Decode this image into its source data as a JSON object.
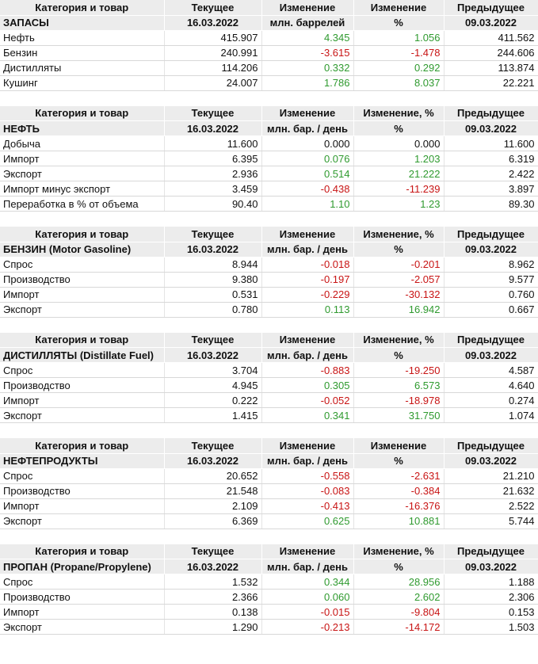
{
  "tables": [
    {
      "header": [
        "Категория и товар",
        "Текущее",
        "Изменение",
        "Изменение",
        "Предыдущее"
      ],
      "subheader": [
        "ЗАПАСЫ",
        "16.03.2022",
        "млн. баррелей",
        "%",
        "09.03.2022"
      ],
      "rows": [
        [
          "Нефть",
          "415.907",
          "4.345",
          "1.056",
          "411.562"
        ],
        [
          "Бензин",
          "240.991",
          "-3.615",
          "-1.478",
          "244.606"
        ],
        [
          "Дистилляты",
          "114.206",
          "0.332",
          "0.292",
          "113.874"
        ],
        [
          "Кушинг",
          "24.007",
          "1.786",
          "8.037",
          "22.221"
        ]
      ]
    },
    {
      "header": [
        "Категория и товар",
        "Текущее",
        "Изменение",
        "Изменение, %",
        "Предыдущее"
      ],
      "subheader": [
        "НЕФТЬ",
        "16.03.2022",
        "млн. бар. / день",
        "%",
        "09.03.2022"
      ],
      "rows": [
        [
          "Добыча",
          "11.600",
          "0.000",
          "0.000",
          "11.600"
        ],
        [
          "Импорт",
          "6.395",
          "0.076",
          "1.203",
          "6.319"
        ],
        [
          "Экспорт",
          "2.936",
          "0.514",
          "21.222",
          "2.422"
        ],
        [
          "Импорт минус экспорт",
          "3.459",
          "-0.438",
          "-11.239",
          "3.897"
        ],
        [
          "Переработка в % от объема",
          "90.40",
          "1.10",
          "1.23",
          "89.30"
        ]
      ]
    },
    {
      "header": [
        "Категория и товар",
        "Текущее",
        "Изменение",
        "Изменение, %",
        "Предыдущее"
      ],
      "subheader": [
        "БЕНЗИН (Motor Gasoline)",
        "16.03.2022",
        "млн. бар. / день",
        "%",
        "09.03.2022"
      ],
      "rows": [
        [
          "Спрос",
          "8.944",
          "-0.018",
          "-0.201",
          "8.962"
        ],
        [
          "Производство",
          "9.380",
          "-0.197",
          "-2.057",
          "9.577"
        ],
        [
          "Импорт",
          "0.531",
          "-0.229",
          "-30.132",
          "0.760"
        ],
        [
          "Экспорт",
          "0.780",
          "0.113",
          "16.942",
          "0.667"
        ]
      ]
    },
    {
      "header": [
        "Категория и товар",
        "Текущее",
        "Изменение",
        "Изменение, %",
        "Предыдущее"
      ],
      "subheader": [
        "ДИСТИЛЛЯТЫ (Distillate Fuel)",
        "16.03.2022",
        "млн. бар. / день",
        "%",
        "09.03.2022"
      ],
      "rows": [
        [
          "Спрос",
          "3.704",
          "-0.883",
          "-19.250",
          "4.587"
        ],
        [
          "Производство",
          "4.945",
          "0.305",
          "6.573",
          "4.640"
        ],
        [
          "Импорт",
          "0.222",
          "-0.052",
          "-18.978",
          "0.274"
        ],
        [
          "Экспорт",
          "1.415",
          "0.341",
          "31.750",
          "1.074"
        ]
      ]
    },
    {
      "header": [
        "Категория и товар",
        "Текущее",
        "Изменение",
        "Изменение",
        "Предыдущее"
      ],
      "subheader": [
        "НЕФТЕПРОДУКТЫ",
        "16.03.2022",
        "млн. бар. / день",
        "%",
        "09.03.2022"
      ],
      "rows": [
        [
          "Спрос",
          "20.652",
          "-0.558",
          "-2.631",
          "21.210"
        ],
        [
          "Производство",
          "21.548",
          "-0.083",
          "-0.384",
          "21.632"
        ],
        [
          "Импорт",
          "2.109",
          "-0.413",
          "-16.376",
          "2.522"
        ],
        [
          "Экспорт",
          "6.369",
          "0.625",
          "10.881",
          "5.744"
        ]
      ]
    },
    {
      "header": [
        "Категория и товар",
        "Текущее",
        "Изменение",
        "Изменение, %",
        "Предыдущее"
      ],
      "subheader": [
        "ПРОПАН (Propane/Propylene)",
        "16.03.2022",
        "млн. бар. / день",
        "%",
        "09.03.2022"
      ],
      "rows": [
        [
          "Спрос",
          "1.532",
          "0.344",
          "28.956",
          "1.188"
        ],
        [
          "Производство",
          "2.366",
          "0.060",
          "2.602",
          "2.306"
        ],
        [
          "Импорт",
          "0.138",
          "-0.015",
          "-9.804",
          "0.153"
        ],
        [
          "Экспорт",
          "1.290",
          "-0.213",
          "-14.172",
          "1.503"
        ]
      ]
    }
  ]
}
